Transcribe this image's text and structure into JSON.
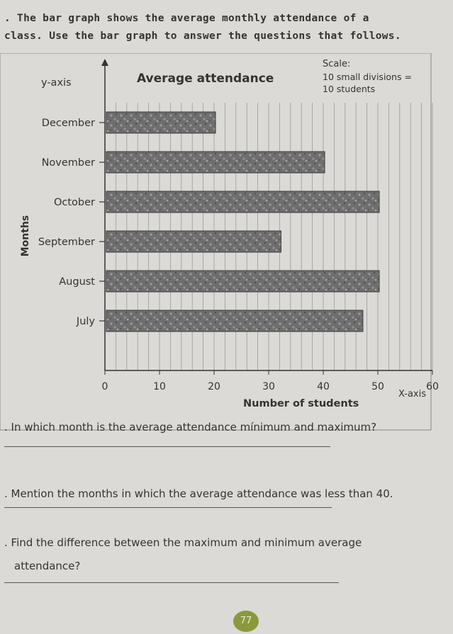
{
  "intro": {
    "line1": ". The bar graph shows the average monthly attendance of a",
    "line2": "class. Use the bar graph to answer the questions that follows."
  },
  "chart_data": {
    "type": "bar",
    "orientation": "horizontal",
    "title": "Average attendance",
    "categories": [
      "December",
      "November",
      "October",
      "September",
      "August",
      "July"
    ],
    "values": [
      20,
      40,
      50,
      32,
      50,
      47
    ],
    "xlabel": "Number of students",
    "ylabel": "Months",
    "x_axis_label": "X-axis",
    "y_axis_label": "y-axis",
    "xticks": [
      "0",
      "10",
      "20",
      "30",
      "40",
      "50",
      "60"
    ],
    "xlim": [
      0,
      60
    ],
    "grid": true,
    "scale": {
      "heading": "Scale:",
      "line1": "10 small divisions =",
      "line2": "10 students"
    }
  },
  "questions": {
    "q1": ". In which month is the average attendance mínimum and maximum?",
    "q2": ". Mention the months in which the average attendance was less than 40.",
    "q3a": ". Find the difference between the maximum and minimum average",
    "q3b": "attendance?"
  },
  "page_number": "77"
}
